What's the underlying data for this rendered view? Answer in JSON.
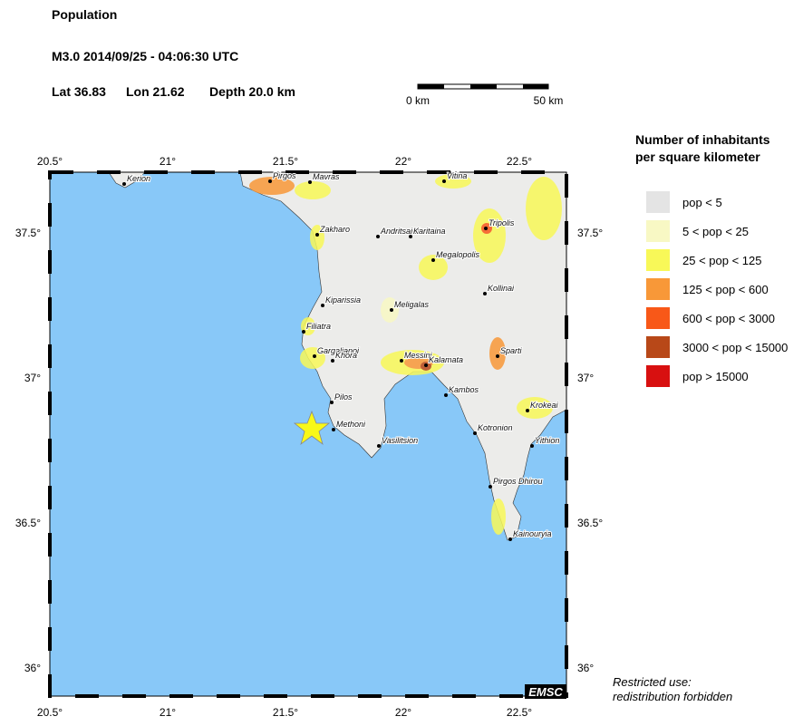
{
  "header": {
    "title": "Population",
    "event": "M3.0  2014/09/25 - 04:06:30 UTC",
    "lat": "Lat 36.83",
    "lon": "Lon  21.62",
    "depth": "Depth  20.0 km"
  },
  "scale_bar": {
    "start_label": "0 km",
    "end_label": "50 km"
  },
  "map": {
    "x_ticks": [
      "20.5°",
      "21°",
      "21.5°",
      "22°",
      "22.5°"
    ],
    "y_ticks": [
      "37.5°",
      "37°",
      "36.5°",
      "36°"
    ],
    "towns": [
      "Kerion",
      "Pirgos",
      "Mavras",
      "Vitina",
      "Tripolis",
      "Zakharo",
      "Andritsaina",
      "Karitaina",
      "Megalopolis",
      "Kiparissia",
      "Kollinai",
      "Meligalas",
      "Filiatra",
      "Gargalianoi",
      "Khora",
      "Messini",
      "Kalamata",
      "Sparti",
      "Pilos",
      "Kambos",
      "Krokeai",
      "Methoni",
      "Kotronion",
      "Vasilitsion",
      "Yithion",
      "Pirgos Dhirou",
      "Kainouryia"
    ],
    "logo": "EMSC"
  },
  "legend": {
    "title": [
      "Number of inhabitants",
      "per square kilometer"
    ],
    "items": [
      {
        "label": "pop < 5",
        "color": "#e4e4e4"
      },
      {
        "label": "5 < pop < 25",
        "color": "#f8f8c4"
      },
      {
        "label": "25 < pop < 125",
        "color": "#f8f858"
      },
      {
        "label": "125 < pop < 600",
        "color": "#f89838"
      },
      {
        "label": "600 < pop < 3000",
        "color": "#f85818"
      },
      {
        "label": "3000 < pop < 15000",
        "color": "#b84818"
      },
      {
        "label": "pop > 15000",
        "color": "#d81010"
      }
    ]
  },
  "footer": [
    "Restricted use:",
    "redistribution forbidden"
  ]
}
